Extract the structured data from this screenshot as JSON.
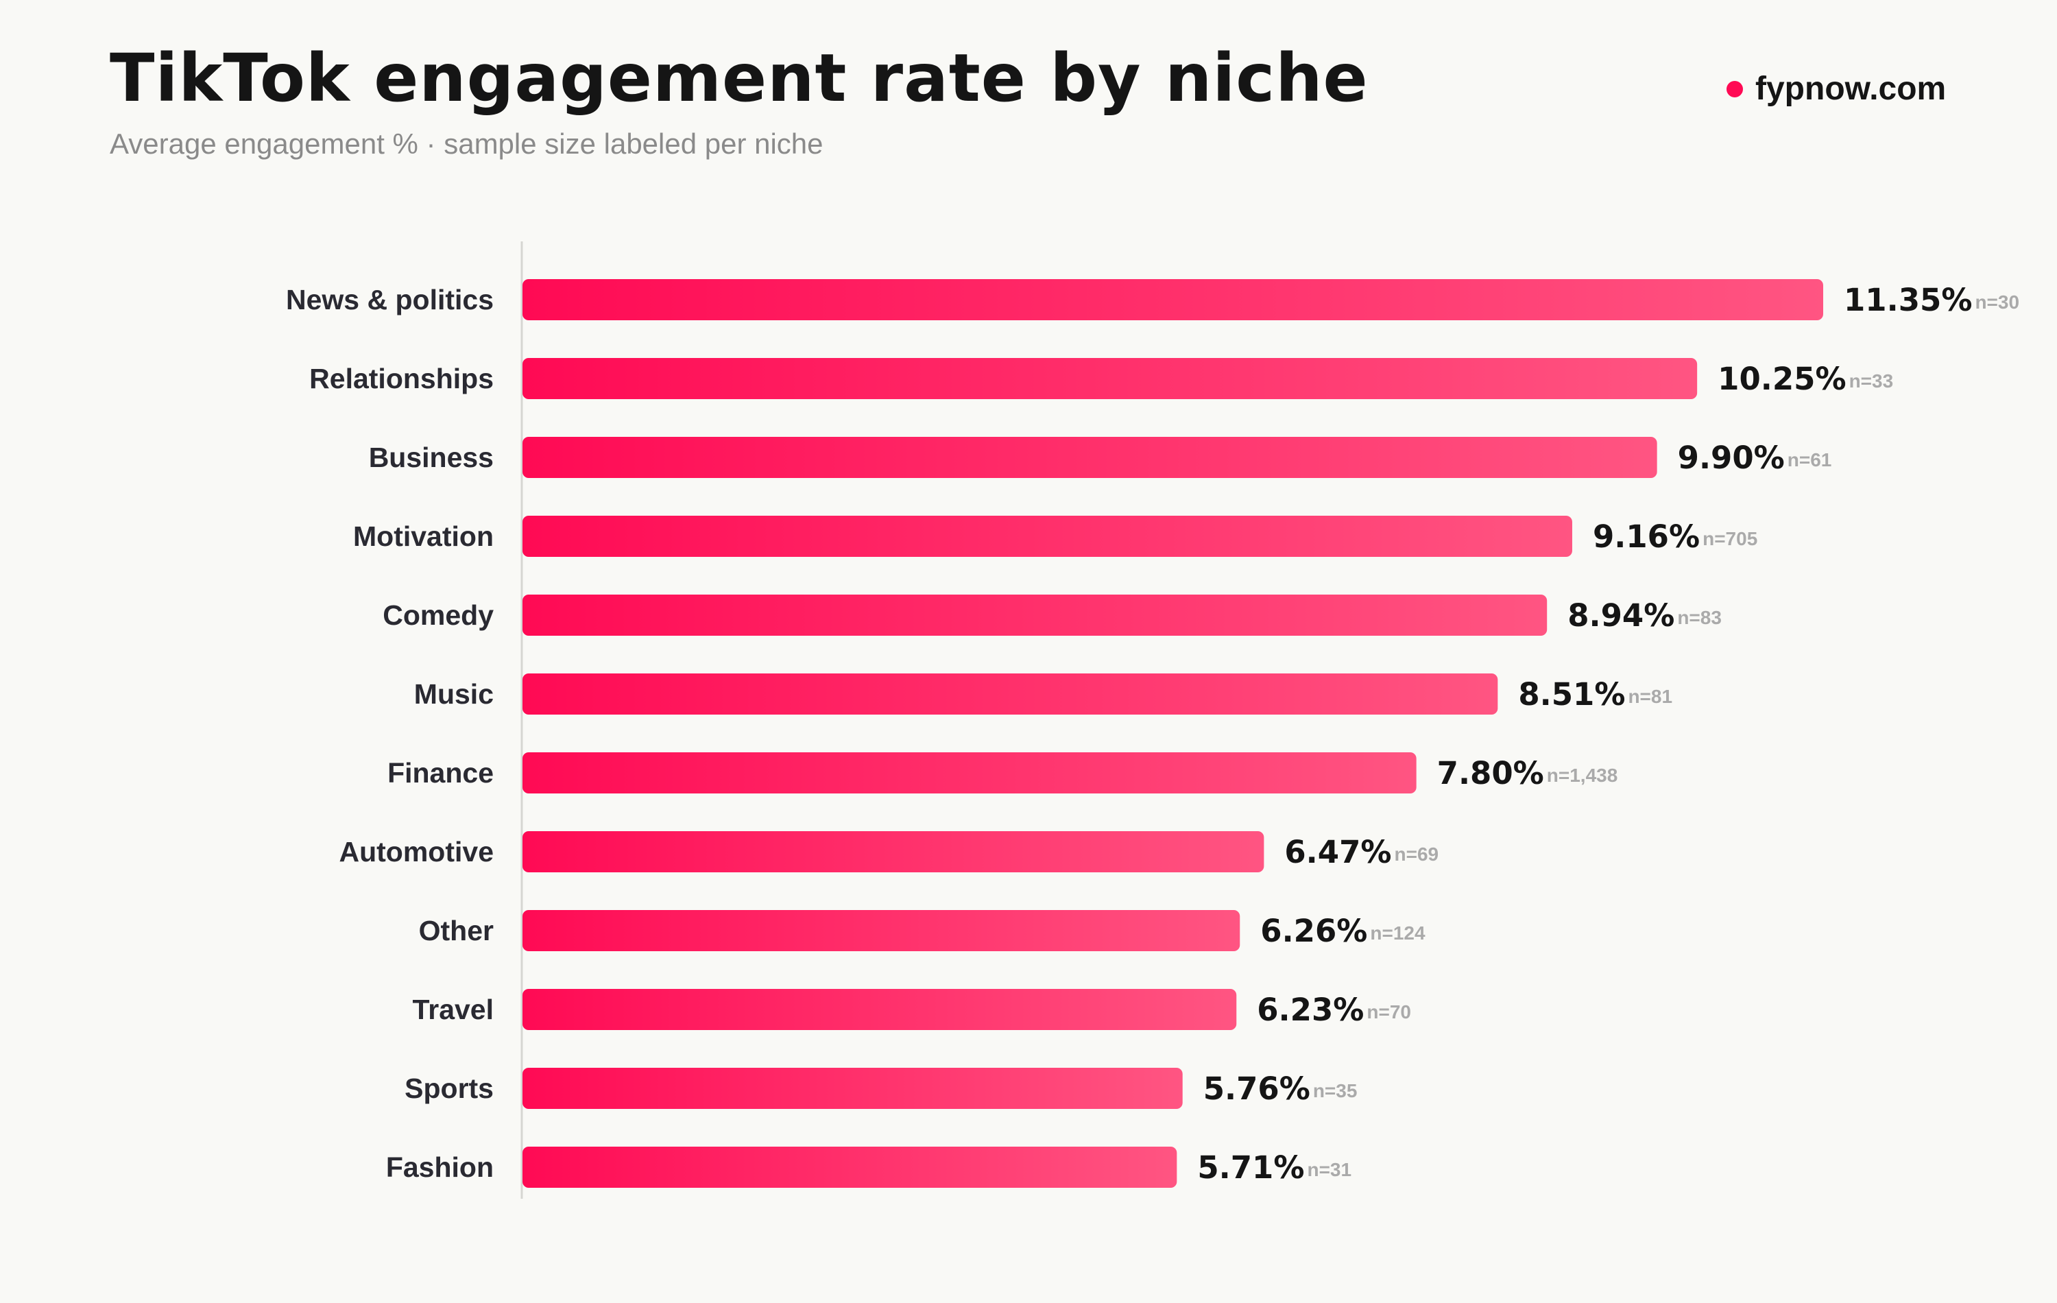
{
  "header": {
    "title": "TikTok engagement rate by niche",
    "subtitle": "Average engagement % · sample size labeled per niche",
    "brand": "fypnow.com"
  },
  "colors": {
    "bar_start": "#ff0a54",
    "bar_end": "#ff5582",
    "brand_dot": "#ff0a54",
    "axis": "#d6d6d2"
  },
  "chart_data": {
    "type": "bar",
    "orientation": "horizontal",
    "title": "TikTok engagement rate by niche",
    "subtitle": "Average engagement % · sample size labeled per niche",
    "xlabel": "",
    "ylabel": "",
    "grid": false,
    "categories": [
      "News & politics",
      "Relationships",
      "Business",
      "Motivation",
      "Comedy",
      "Music",
      "Finance",
      "Automotive",
      "Other",
      "Travel",
      "Sports",
      "Fashion"
    ],
    "values": [
      11.35,
      10.25,
      9.9,
      9.16,
      8.94,
      8.51,
      7.8,
      6.47,
      6.26,
      6.23,
      5.76,
      5.71
    ],
    "value_labels": [
      "11.35%",
      "10.25%",
      "9.90%",
      "9.16%",
      "8.94%",
      "8.51%",
      "7.80%",
      "6.47%",
      "6.26%",
      "6.23%",
      "5.76%",
      "5.71%"
    ],
    "sample_labels": [
      "n=30",
      "n=33",
      "n=61",
      "n=705",
      "n=83",
      "n=81",
      "n=1,438",
      "n=69",
      "n=124",
      "n=70",
      "n=35",
      "n=31"
    ]
  }
}
